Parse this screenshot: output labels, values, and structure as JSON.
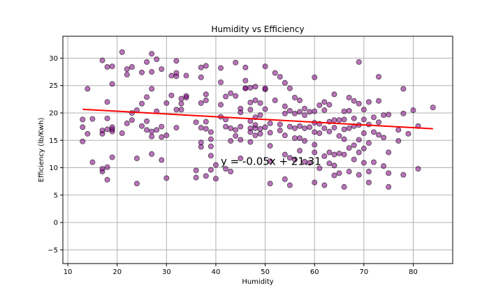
{
  "chart_data": {
    "type": "scatter",
    "title": "Humidity vs Efficiency",
    "xlabel": "Humidity",
    "ylabel": "Efficiency (lb/Kwh)",
    "xlim": [
      9,
      88
    ],
    "ylim": [
      -7.5,
      34
    ],
    "xticks": [
      10,
      20,
      30,
      40,
      50,
      60,
      70,
      80
    ],
    "yticks": [
      -5,
      0,
      5,
      10,
      15,
      20,
      25,
      30
    ],
    "grid": true,
    "marker_color": "#800080",
    "regression_color": "#ff0000",
    "regression": {
      "slope": -0.05,
      "intercept": 21.31,
      "x_range": [
        13,
        84
      ]
    },
    "annotation": {
      "text": "y = -0.05x + 21.31",
      "x": 41,
      "y": 10.5
    },
    "x": [
      13,
      13,
      13,
      14,
      14,
      15,
      15,
      17,
      17,
      17,
      17,
      17,
      18,
      18,
      18,
      18,
      18,
      18,
      19,
      19,
      19,
      19,
      19,
      19,
      21,
      21,
      22,
      22,
      22,
      23,
      23,
      23,
      24,
      24,
      24,
      25,
      25,
      25,
      26,
      26,
      26,
      26,
      27,
      27,
      27,
      27,
      27,
      27,
      28,
      28,
      28,
      29,
      29,
      29,
      29,
      30,
      30,
      30,
      31,
      31,
      32,
      32,
      32,
      32,
      32,
      33,
      33,
      33,
      34,
      34,
      34,
      36,
      36,
      36,
      37,
      37,
      37,
      37,
      37,
      37,
      38,
      38,
      38,
      38,
      38,
      38,
      39,
      39,
      39,
      39,
      39,
      40,
      40,
      41,
      41,
      41,
      41,
      42,
      42,
      42,
      42,
      43,
      43,
      43,
      43,
      44,
      44,
      44,
      44,
      45,
      45,
      45,
      45,
      45,
      46,
      46,
      46,
      46,
      47,
      47,
      47,
      47,
      47,
      47,
      47,
      48,
      48,
      48,
      48,
      48,
      48,
      49,
      49,
      49,
      49,
      50,
      50,
      50,
      50,
      50,
      51,
      51,
      51,
      51,
      51,
      52,
      52,
      53,
      53,
      53,
      54,
      54,
      54,
      54,
      54,
      54,
      55,
      55,
      55,
      55,
      55,
      56,
      56,
      56,
      56,
      56,
      57,
      57,
      57,
      57,
      57,
      58,
      58,
      58,
      58,
      58,
      59,
      59,
      59,
      60,
      60,
      60,
      60,
      60,
      60,
      60,
      61,
      61,
      61,
      61,
      62,
      62,
      62,
      62,
      62,
      63,
      63,
      63,
      63,
      63,
      64,
      64,
      64,
      64,
      64,
      64,
      65,
      65,
      65,
      65,
      66,
      66,
      66,
      66,
      66,
      66,
      67,
      67,
      67,
      67,
      67,
      68,
      68,
      68,
      68,
      68,
      69,
      69,
      69,
      69,
      69,
      69,
      70,
      70,
      70,
      70,
      70,
      71,
      71,
      71,
      71,
      71,
      72,
      72,
      72,
      73,
      73,
      73,
      73,
      74,
      74,
      74,
      75,
      75,
      75,
      75,
      77,
      77,
      78,
      78,
      78,
      79,
      80,
      81,
      81,
      84
    ],
    "y": [
      14.8,
      17.4,
      18.8,
      16.2,
      24.4,
      11,
      18.9,
      9.3,
      9.8,
      16.2,
      16.8,
      29.6,
      7.8,
      10.1,
      17,
      19,
      22,
      28.4,
      11.9,
      16.6,
      17,
      17.4,
      25.3,
      28.5,
      16.3,
      31.1,
      18.1,
      27,
      28,
      18.7,
      20,
      28.4,
      7.1,
      11.7,
      20.5,
      17.6,
      21.7,
      27.4,
      16.9,
      18.5,
      22.9,
      29.3,
      12.5,
      15.7,
      16.6,
      24.4,
      27.5,
      30.8,
      16.9,
      20.3,
      29.8,
      11.4,
      15.6,
      17.5,
      28,
      8.1,
      15.9,
      21.8,
      23.2,
      26.8,
      17.3,
      20.6,
      26.7,
      27.3,
      29.5,
      20.6,
      21.7,
      22.6,
      22.8,
      23.1,
      26.8,
      8.2,
      9.5,
      18.3,
      13.8,
      14.6,
      17.3,
      21.8,
      26.5,
      28.3,
      8.5,
      17.1,
      18.4,
      22.3,
      23.4,
      28.6,
      9.6,
      12.2,
      13.9,
      15.2,
      16.5,
      8,
      10.5,
      19.3,
      21.5,
      25.6,
      28.2,
      9.8,
      17.5,
      18.8,
      23,
      9.3,
      14.9,
      17.2,
      23.6,
      15.8,
      16.9,
      23.1,
      29.2,
      11.7,
      15.1,
      17.5,
      20.1,
      20.8,
      24.5,
      24.5,
      25.9,
      28.3,
      14.7,
      16.5,
      17.2,
      18.5,
      20.6,
      21.9,
      24.6,
      15.9,
      17.2,
      17.8,
      19.2,
      22.3,
      24.8,
      16.2,
      17.1,
      19.6,
      21.8,
      17.4,
      20.7,
      24.3,
      24.5,
      28.5,
      7.1,
      11.2,
      14,
      16.4,
      18.1,
      22.3,
      27.3,
      16.8,
      17.9,
      26.6,
      7.9,
      12.4,
      15.9,
      19.9,
      21.2,
      25.5,
      6.8,
      11.8,
      17.5,
      20.4,
      24.5,
      11.5,
      15.4,
      17.2,
      19.9,
      22.8,
      13.1,
      15.4,
      17.6,
      20.2,
      22.3,
      11.1,
      14.9,
      17.2,
      19.6,
      20.8,
      10.9,
      17.4,
      20.2,
      7.3,
      12.8,
      14.2,
      16.5,
      18.2,
      20.3,
      26.5,
      9.9,
      16.3,
      18,
      21.4,
      6.8,
      12.1,
      17.2,
      20.5,
      22,
      10.8,
      12.8,
      16.6,
      18.4,
      21.5,
      8.6,
      10.4,
      12.4,
      17.3,
      18.7,
      23.4,
      9,
      12.6,
      15.8,
      18.7,
      6.5,
      12.4,
      15.2,
      17,
      18.8,
      20.3,
      9.3,
      13.6,
      17.2,
      20.4,
      22.8,
      11.5,
      14.1,
      17.6,
      19,
      22.2,
      8.7,
      12.8,
      15.1,
      17.8,
      21.7,
      29.3,
      10.9,
      13.5,
      16.3,
      18.8,
      20.6,
      7.3,
      9.3,
      14.5,
      17.9,
      22,
      11,
      16.5,
      19.2,
      16,
      18.3,
      22.2,
      26.6,
      10.3,
      15.5,
      19.6,
      6.5,
      9,
      12.8,
      19.7,
      14.9,
      16.9,
      8.7,
      19.9,
      24.4,
      16.2,
      20.5,
      9.8,
      17.6,
      21
    ]
  }
}
